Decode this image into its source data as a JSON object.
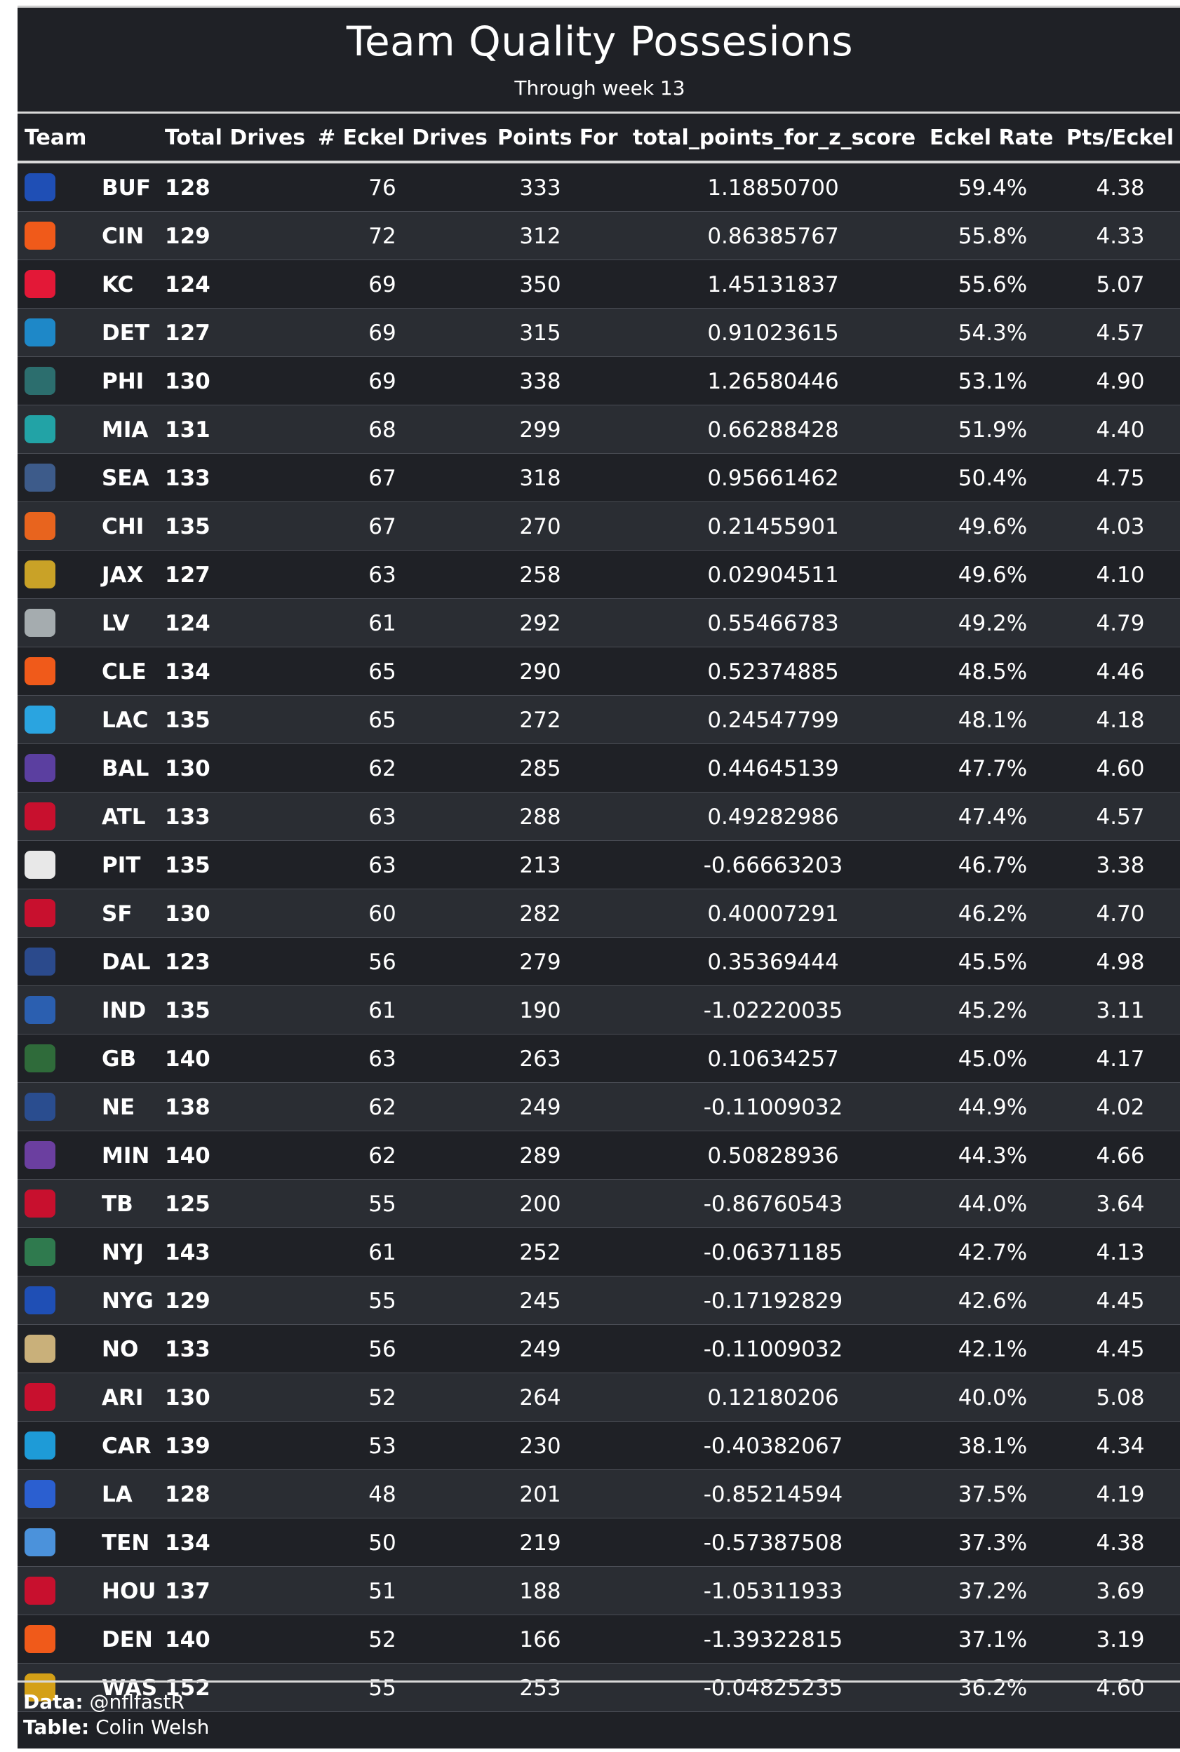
{
  "title": "Team Quality Possesions",
  "subtitle": "Through week 13",
  "columns": {
    "team": "Team",
    "total_drives": "Total Drives",
    "eckel_drives": "# Eckel Drives",
    "points_for": "Points For",
    "z_score": "total_points_for_z_score",
    "eckel_rate": "Eckel Rate",
    "pts_per_eckel": "Pts/Eckel"
  },
  "teams": [
    {
      "abbr": "BUF",
      "total_drives": "128",
      "eckel_drives": "76",
      "points_for": "333",
      "z_score": "1.18850700",
      "eckel_rate": "59.4%",
      "pts_per_eckel": "4.38",
      "logo_color": "#1f4fb5",
      "logo_icon": "bills-logo-icon"
    },
    {
      "abbr": "CIN",
      "total_drives": "129",
      "eckel_drives": "72",
      "points_for": "312",
      "z_score": "0.86385767",
      "eckel_rate": "55.8%",
      "pts_per_eckel": "4.33",
      "logo_color": "#f05a1a",
      "logo_icon": "bengals-logo-icon"
    },
    {
      "abbr": "KC",
      "total_drives": "124",
      "eckel_drives": "69",
      "points_for": "350",
      "z_score": "1.45131837",
      "eckel_rate": "55.6%",
      "pts_per_eckel": "5.07",
      "logo_color": "#e31837",
      "logo_icon": "chiefs-logo-icon"
    },
    {
      "abbr": "DET",
      "total_drives": "127",
      "eckel_drives": "69",
      "points_for": "315",
      "z_score": "0.91023615",
      "eckel_rate": "54.3%",
      "pts_per_eckel": "4.57",
      "logo_color": "#1e88c8",
      "logo_icon": "lions-logo-icon"
    },
    {
      "abbr": "PHI",
      "total_drives": "130",
      "eckel_drives": "69",
      "points_for": "338",
      "z_score": "1.26580446",
      "eckel_rate": "53.1%",
      "pts_per_eckel": "4.90",
      "logo_color": "#2c6e6e",
      "logo_icon": "eagles-logo-icon"
    },
    {
      "abbr": "MIA",
      "total_drives": "131",
      "eckel_drives": "68",
      "points_for": "299",
      "z_score": "0.66288428",
      "eckel_rate": "51.9%",
      "pts_per_eckel": "4.40",
      "logo_color": "#22a3a6",
      "logo_icon": "dolphins-logo-icon"
    },
    {
      "abbr": "SEA",
      "total_drives": "133",
      "eckel_drives": "67",
      "points_for": "318",
      "z_score": "0.95661462",
      "eckel_rate": "50.4%",
      "pts_per_eckel": "4.75",
      "logo_color": "#3d5b8a",
      "logo_icon": "seahawks-logo-icon"
    },
    {
      "abbr": "CHI",
      "total_drives": "135",
      "eckel_drives": "67",
      "points_for": "270",
      "z_score": "0.21455901",
      "eckel_rate": "49.6%",
      "pts_per_eckel": "4.03",
      "logo_color": "#e8641e",
      "logo_icon": "bears-logo-icon"
    },
    {
      "abbr": "JAX",
      "total_drives": "127",
      "eckel_drives": "63",
      "points_for": "258",
      "z_score": "0.02904511",
      "eckel_rate": "49.6%",
      "pts_per_eckel": "4.10",
      "logo_color": "#c9a227",
      "logo_icon": "jaguars-logo-icon"
    },
    {
      "abbr": "LV",
      "total_drives": "124",
      "eckel_drives": "61",
      "points_for": "292",
      "z_score": "0.55466783",
      "eckel_rate": "49.2%",
      "pts_per_eckel": "4.79",
      "logo_color": "#a5acaf",
      "logo_icon": "raiders-logo-icon"
    },
    {
      "abbr": "CLE",
      "total_drives": "134",
      "eckel_drives": "65",
      "points_for": "290",
      "z_score": "0.52374885",
      "eckel_rate": "48.5%",
      "pts_per_eckel": "4.46",
      "logo_color": "#f05a1a",
      "logo_icon": "browns-logo-icon"
    },
    {
      "abbr": "LAC",
      "total_drives": "135",
      "eckel_drives": "65",
      "points_for": "272",
      "z_score": "0.24547799",
      "eckel_rate": "48.1%",
      "pts_per_eckel": "4.18",
      "logo_color": "#2aa4e0",
      "logo_icon": "chargers-logo-icon"
    },
    {
      "abbr": "BAL",
      "total_drives": "130",
      "eckel_drives": "62",
      "points_for": "285",
      "z_score": "0.44645139",
      "eckel_rate": "47.7%",
      "pts_per_eckel": "4.60",
      "logo_color": "#5b3fa0",
      "logo_icon": "ravens-logo-icon"
    },
    {
      "abbr": "ATL",
      "total_drives": "133",
      "eckel_drives": "63",
      "points_for": "288",
      "z_score": "0.49282986",
      "eckel_rate": "47.4%",
      "pts_per_eckel": "4.57",
      "logo_color": "#c8102e",
      "logo_icon": "falcons-logo-icon"
    },
    {
      "abbr": "PIT",
      "total_drives": "135",
      "eckel_drives": "63",
      "points_for": "213",
      "z_score": "-0.66663203",
      "eckel_rate": "46.7%",
      "pts_per_eckel": "3.38",
      "logo_color": "#e8e8e8",
      "logo_icon": "steelers-logo-icon"
    },
    {
      "abbr": "SF",
      "total_drives": "130",
      "eckel_drives": "60",
      "points_for": "282",
      "z_score": "0.40007291",
      "eckel_rate": "46.2%",
      "pts_per_eckel": "4.70",
      "logo_color": "#c8102e",
      "logo_icon": "49ers-logo-icon"
    },
    {
      "abbr": "DAL",
      "total_drives": "123",
      "eckel_drives": "56",
      "points_for": "279",
      "z_score": "0.35369444",
      "eckel_rate": "45.5%",
      "pts_per_eckel": "4.98",
      "logo_color": "#2b4a8c",
      "logo_icon": "cowboys-logo-icon"
    },
    {
      "abbr": "IND",
      "total_drives": "135",
      "eckel_drives": "61",
      "points_for": "190",
      "z_score": "-1.02220035",
      "eckel_rate": "45.2%",
      "pts_per_eckel": "3.11",
      "logo_color": "#2b5fb0",
      "logo_icon": "colts-logo-icon"
    },
    {
      "abbr": "GB",
      "total_drives": "140",
      "eckel_drives": "63",
      "points_for": "263",
      "z_score": "0.10634257",
      "eckel_rate": "45.0%",
      "pts_per_eckel": "4.17",
      "logo_color": "#2f6b3a",
      "logo_icon": "packers-logo-icon"
    },
    {
      "abbr": "NE",
      "total_drives": "138",
      "eckel_drives": "62",
      "points_for": "249",
      "z_score": "-0.11009032",
      "eckel_rate": "44.9%",
      "pts_per_eckel": "4.02",
      "logo_color": "#2a4d8f",
      "logo_icon": "patriots-logo-icon"
    },
    {
      "abbr": "MIN",
      "total_drives": "140",
      "eckel_drives": "62",
      "points_for": "289",
      "z_score": "0.50828936",
      "eckel_rate": "44.3%",
      "pts_per_eckel": "4.66",
      "logo_color": "#6b3fa0",
      "logo_icon": "vikings-logo-icon"
    },
    {
      "abbr": "TB",
      "total_drives": "125",
      "eckel_drives": "55",
      "points_for": "200",
      "z_score": "-0.86760543",
      "eckel_rate": "44.0%",
      "pts_per_eckel": "3.64",
      "logo_color": "#c8102e",
      "logo_icon": "buccaneers-logo-icon"
    },
    {
      "abbr": "NYJ",
      "total_drives": "143",
      "eckel_drives": "61",
      "points_for": "252",
      "z_score": "-0.06371185",
      "eckel_rate": "42.7%",
      "pts_per_eckel": "4.13",
      "logo_color": "#2f7a4e",
      "logo_icon": "jets-logo-icon"
    },
    {
      "abbr": "NYG",
      "total_drives": "129",
      "eckel_drives": "55",
      "points_for": "245",
      "z_score": "-0.17192829",
      "eckel_rate": "42.6%",
      "pts_per_eckel": "4.45",
      "logo_color": "#1f4fb5",
      "logo_icon": "giants-logo-icon"
    },
    {
      "abbr": "NO",
      "total_drives": "133",
      "eckel_drives": "56",
      "points_for": "249",
      "z_score": "-0.11009032",
      "eckel_rate": "42.1%",
      "pts_per_eckel": "4.45",
      "logo_color": "#c9b07a",
      "logo_icon": "saints-logo-icon"
    },
    {
      "abbr": "ARI",
      "total_drives": "130",
      "eckel_drives": "52",
      "points_for": "264",
      "z_score": "0.12180206",
      "eckel_rate": "40.0%",
      "pts_per_eckel": "5.08",
      "logo_color": "#c8102e",
      "logo_icon": "cardinals-logo-icon"
    },
    {
      "abbr": "CAR",
      "total_drives": "139",
      "eckel_drives": "53",
      "points_for": "230",
      "z_score": "-0.40382067",
      "eckel_rate": "38.1%",
      "pts_per_eckel": "4.34",
      "logo_color": "#1e9bd7",
      "logo_icon": "panthers-logo-icon"
    },
    {
      "abbr": "LA",
      "total_drives": "128",
      "eckel_drives": "48",
      "points_for": "201",
      "z_score": "-0.85214594",
      "eckel_rate": "37.5%",
      "pts_per_eckel": "4.19",
      "logo_color": "#2b5fd0",
      "logo_icon": "rams-logo-icon"
    },
    {
      "abbr": "TEN",
      "total_drives": "134",
      "eckel_drives": "50",
      "points_for": "219",
      "z_score": "-0.57387508",
      "eckel_rate": "37.3%",
      "pts_per_eckel": "4.38",
      "logo_color": "#4b92db",
      "logo_icon": "titans-logo-icon"
    },
    {
      "abbr": "HOU",
      "total_drives": "137",
      "eckel_drives": "51",
      "points_for": "188",
      "z_score": "-1.05311933",
      "eckel_rate": "37.2%",
      "pts_per_eckel": "3.69",
      "logo_color": "#c8102e",
      "logo_icon": "texans-logo-icon"
    },
    {
      "abbr": "DEN",
      "total_drives": "140",
      "eckel_drives": "52",
      "points_for": "166",
      "z_score": "-1.39322815",
      "eckel_rate": "37.1%",
      "pts_per_eckel": "3.19",
      "logo_color": "#f05a1a",
      "logo_icon": "broncos-logo-icon"
    },
    {
      "abbr": "WAS",
      "total_drives": "152",
      "eckel_drives": "55",
      "points_for": "253",
      "z_score": "-0.04825235",
      "eckel_rate": "36.2%",
      "pts_per_eckel": "4.60",
      "logo_color": "#d4a017",
      "logo_icon": "commanders-logo-icon"
    }
  ],
  "footer": {
    "data_label": "Data:",
    "data_value": "@nflfastR",
    "table_label": "Table:",
    "table_value": "Colin Welsh"
  }
}
